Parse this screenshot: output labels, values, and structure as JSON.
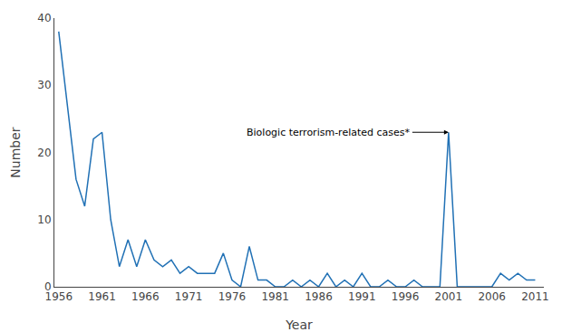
{
  "chart_data": {
    "type": "line",
    "x": [
      1956,
      1957,
      1958,
      1959,
      1960,
      1961,
      1962,
      1963,
      1964,
      1965,
      1966,
      1967,
      1968,
      1969,
      1970,
      1971,
      1972,
      1973,
      1974,
      1975,
      1976,
      1977,
      1978,
      1979,
      1980,
      1981,
      1982,
      1983,
      1984,
      1985,
      1986,
      1987,
      1988,
      1989,
      1990,
      1991,
      1992,
      1993,
      1994,
      1995,
      1996,
      1997,
      1998,
      1999,
      2000,
      2001,
      2002,
      2003,
      2004,
      2005,
      2006,
      2007,
      2008,
      2009,
      2010,
      2011
    ],
    "values": [
      38,
      27,
      16,
      12,
      22,
      23,
      10,
      3,
      7,
      3,
      7,
      4,
      3,
      4,
      2,
      3,
      2,
      2,
      2,
      5,
      1,
      0,
      6,
      1,
      1,
      0,
      0,
      1,
      0,
      1,
      0,
      2,
      0,
      1,
      0,
      2,
      0,
      0,
      1,
      0,
      0,
      1,
      0,
      0,
      0,
      23,
      0,
      0,
      0,
      0,
      0,
      2,
      1,
      2,
      1,
      1
    ],
    "color": "#2171b5",
    "xlabel": "Year",
    "ylabel": "Number",
    "xlim": [
      1955.5,
      2012
    ],
    "ylim": [
      0,
      40
    ],
    "xticks": [
      1956,
      1961,
      1966,
      1971,
      1976,
      1981,
      1986,
      1991,
      1996,
      2001,
      2006,
      2011
    ],
    "yticks": [
      0,
      10,
      20,
      30,
      40
    ],
    "grid": false,
    "annotations": [
      {
        "text": "Biologic terrorism-related cases*",
        "x": 2001,
        "y": 23
      }
    ]
  }
}
